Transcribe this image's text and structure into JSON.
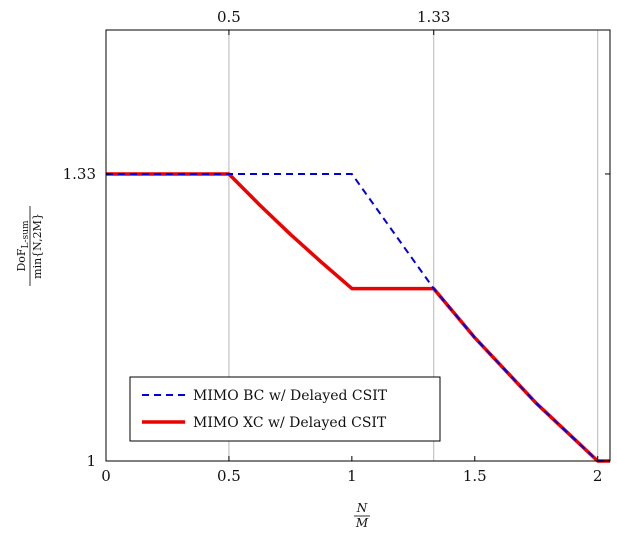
{
  "chart_data": {
    "type": "line",
    "xlabel": {
      "numerator": "N",
      "denominator": "M"
    },
    "ylabel": {
      "numerator_main": "DoF",
      "numerator_sub": "L-sum",
      "denominator": "min{N,2M}"
    },
    "xlim": [
      0,
      2.05
    ],
    "ylim": [
      1,
      1.5
    ],
    "x_ticks_bottom": [
      {
        "value": 0,
        "label": "0"
      },
      {
        "value": 0.5,
        "label": "0.5"
      },
      {
        "value": 1,
        "label": "1"
      },
      {
        "value": 1.5,
        "label": "1.5"
      },
      {
        "value": 2,
        "label": "2"
      }
    ],
    "x_ticks_top": [
      {
        "value": 0.5,
        "label": "0.5"
      },
      {
        "value": 1.333,
        "label": "1.33"
      }
    ],
    "y_ticks": [
      {
        "value": 1,
        "label": "1"
      },
      {
        "value": 1.333,
        "label": "1.33"
      }
    ],
    "vertical_gridlines": [
      0.5,
      1.333,
      2
    ],
    "legend_position": "bottom-left",
    "series": [
      {
        "name": "MIMO BC w/ Delayed CSIT",
        "color": "#0000dd",
        "style": "dashed",
        "x": [
          0,
          0.5,
          1.0,
          1.333,
          1.5,
          1.75,
          2.0,
          2.05
        ],
        "y": [
          1.333,
          1.333,
          1.333,
          1.2,
          1.143,
          1.067,
          1.0,
          1.0
        ]
      },
      {
        "name": "MIMO XC w/ Delayed CSIT",
        "color": "#ee0000",
        "style": "solid",
        "x": [
          0,
          0.5,
          0.625,
          0.75,
          0.875,
          1.0,
          1.333,
          1.5,
          1.75,
          2.0,
          2.05
        ],
        "y": [
          1.333,
          1.333,
          1.297,
          1.263,
          1.231,
          1.2,
          1.2,
          1.143,
          1.067,
          1.0,
          1.0
        ]
      }
    ]
  }
}
